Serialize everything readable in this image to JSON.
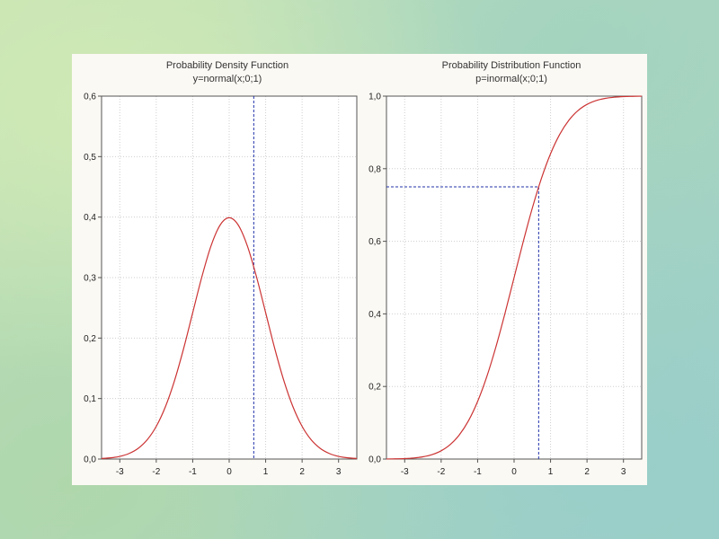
{
  "colors": {
    "curve": "#cc3333",
    "guide": "#2233aa",
    "grid": "#cfcfcf",
    "frame": "#555555",
    "panel_bg": "#fbf9f4"
  },
  "chart_data": [
    {
      "type": "line",
      "title": "Probability Density Function",
      "subtitle": "y=normal(x;0;1)",
      "xlabel": "",
      "ylabel": "",
      "xlim": [
        -3.5,
        3.5
      ],
      "ylim": [
        0,
        0.6
      ],
      "x_ticks": [
        -3,
        -2,
        -1,
        0,
        1,
        2,
        3
      ],
      "x_tick_labels": [
        "-3",
        "-2",
        "-1",
        "0",
        "1",
        "2",
        "3"
      ],
      "y_ticks": [
        0,
        0.1,
        0.2,
        0.3,
        0.4,
        0.5,
        0.6
      ],
      "y_tick_labels": [
        "0,0",
        "0,1",
        "0,2",
        "0,3",
        "0,4",
        "0,5",
        "0,6"
      ],
      "grid": true,
      "series": [
        {
          "x": [
            -3.5,
            -3.25,
            -3.0,
            -2.75,
            -2.5,
            -2.25,
            -2.0,
            -1.75,
            -1.5,
            -1.25,
            -1.0,
            -0.75,
            -0.5,
            -0.25,
            0.0,
            0.25,
            0.5,
            0.75,
            1.0,
            1.25,
            1.5,
            1.75,
            2.0,
            2.25,
            2.5,
            2.75,
            3.0,
            3.25,
            3.5
          ],
          "y": [
            0.0009,
            0.002,
            0.0044,
            0.0091,
            0.0175,
            0.0317,
            0.054,
            0.0863,
            0.1295,
            0.1826,
            0.242,
            0.3011,
            0.3521,
            0.3867,
            0.3989,
            0.3867,
            0.3521,
            0.3011,
            0.242,
            0.1826,
            0.1295,
            0.0863,
            0.054,
            0.0317,
            0.0175,
            0.0091,
            0.0044,
            0.002,
            0.0009
          ]
        }
      ],
      "guide": {
        "x": 0.674,
        "vertical_only": true
      }
    },
    {
      "type": "line",
      "title": "Probability Distribution Function",
      "subtitle": "p=inormal(x;0;1)",
      "xlabel": "",
      "ylabel": "",
      "xlim": [
        -3.5,
        3.5
      ],
      "ylim": [
        0,
        1.0
      ],
      "x_ticks": [
        -3,
        -2,
        -1,
        0,
        1,
        2,
        3
      ],
      "x_tick_labels": [
        "-3",
        "-2",
        "-1",
        "0",
        "1",
        "2",
        "3"
      ],
      "y_ticks": [
        0,
        0.2,
        0.4,
        0.6,
        0.8,
        1.0
      ],
      "y_tick_labels": [
        "0,0",
        "0,2",
        "0,4",
        "0,6",
        "0,8",
        "1,0"
      ],
      "grid": true,
      "series": [
        {
          "x": [
            -3.5,
            -3.25,
            -3.0,
            -2.75,
            -2.5,
            -2.25,
            -2.0,
            -1.75,
            -1.5,
            -1.25,
            -1.0,
            -0.75,
            -0.5,
            -0.25,
            0.0,
            0.25,
            0.5,
            0.75,
            1.0,
            1.25,
            1.5,
            1.75,
            2.0,
            2.25,
            2.5,
            2.75,
            3.0,
            3.25,
            3.5
          ],
          "y": [
            0.0002,
            0.0006,
            0.0013,
            0.003,
            0.0062,
            0.0122,
            0.0228,
            0.0401,
            0.0668,
            0.1056,
            0.1587,
            0.2266,
            0.3085,
            0.4013,
            0.5,
            0.5987,
            0.6915,
            0.7734,
            0.8413,
            0.8944,
            0.9332,
            0.9599,
            0.9772,
            0.9878,
            0.9938,
            0.997,
            0.9987,
            0.9994,
            0.9998
          ]
        }
      ],
      "guide": {
        "x": 0.674,
        "y": 0.75,
        "vertical_only": false
      }
    }
  ]
}
